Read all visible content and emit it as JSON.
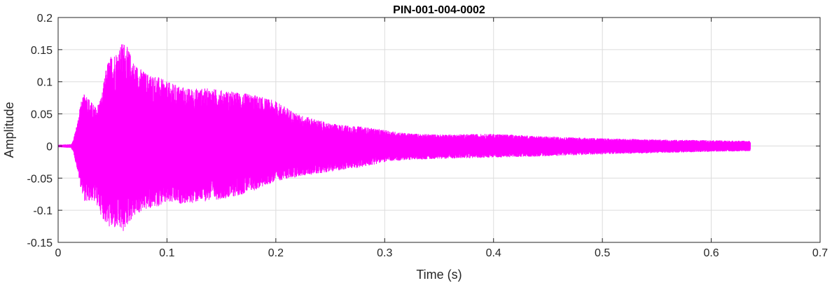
{
  "chart_data": {
    "type": "line",
    "title": "PIN-001-004-0002",
    "xlabel": "Time (s)",
    "ylabel": "Amplitude",
    "xlim": [
      0,
      0.7
    ],
    "ylim": [
      -0.15,
      0.2
    ],
    "xticks": [
      0,
      0.1,
      0.2,
      0.3,
      0.4,
      0.5,
      0.6,
      0.7
    ],
    "xtick_labels": [
      "0",
      "0.1",
      "0.2",
      "0.3",
      "0.4",
      "0.5",
      "0.6",
      "0.7"
    ],
    "yticks": [
      -0.15,
      -0.1,
      -0.05,
      0,
      0.05,
      0.1,
      0.15,
      0.2
    ],
    "ytick_labels": [
      "-0.15",
      "-0.1",
      "-0.05",
      "0",
      "0.05",
      "0.1",
      "0.15",
      "0.2"
    ],
    "grid": true,
    "colors": {
      "series": "#ff00ff",
      "grid": "#dcdcdc",
      "axis": "#262626"
    },
    "series": [
      {
        "envelope": {
          "t": [
            0.0,
            0.012,
            0.014,
            0.018,
            0.02,
            0.025,
            0.03,
            0.035,
            0.04,
            0.045,
            0.05,
            0.055,
            0.06,
            0.065,
            0.07,
            0.08,
            0.09,
            0.1,
            0.12,
            0.14,
            0.16,
            0.18,
            0.2,
            0.22,
            0.25,
            0.28,
            0.3,
            0.32,
            0.35,
            0.4,
            0.45,
            0.5,
            0.55,
            0.6,
            0.636
          ],
          "upper": [
            0.002,
            0.003,
            0.01,
            0.04,
            0.065,
            0.085,
            0.07,
            0.06,
            0.08,
            0.13,
            0.145,
            0.15,
            0.165,
            0.15,
            0.13,
            0.115,
            0.11,
            0.1,
            0.09,
            0.09,
            0.085,
            0.08,
            0.07,
            0.05,
            0.035,
            0.03,
            0.025,
            0.02,
            0.018,
            0.019,
            0.015,
            0.012,
            0.01,
            0.009,
            0.008
          ],
          "lower": [
            -0.002,
            -0.003,
            -0.01,
            -0.04,
            -0.06,
            -0.09,
            -0.085,
            -0.09,
            -0.11,
            -0.125,
            -0.13,
            -0.13,
            -0.135,
            -0.12,
            -0.11,
            -0.1,
            -0.095,
            -0.09,
            -0.09,
            -0.085,
            -0.08,
            -0.07,
            -0.055,
            -0.048,
            -0.04,
            -0.033,
            -0.025,
            -0.022,
            -0.02,
            -0.018,
            -0.016,
            -0.013,
            -0.011,
            -0.009,
            -0.008
          ]
        }
      }
    ]
  }
}
